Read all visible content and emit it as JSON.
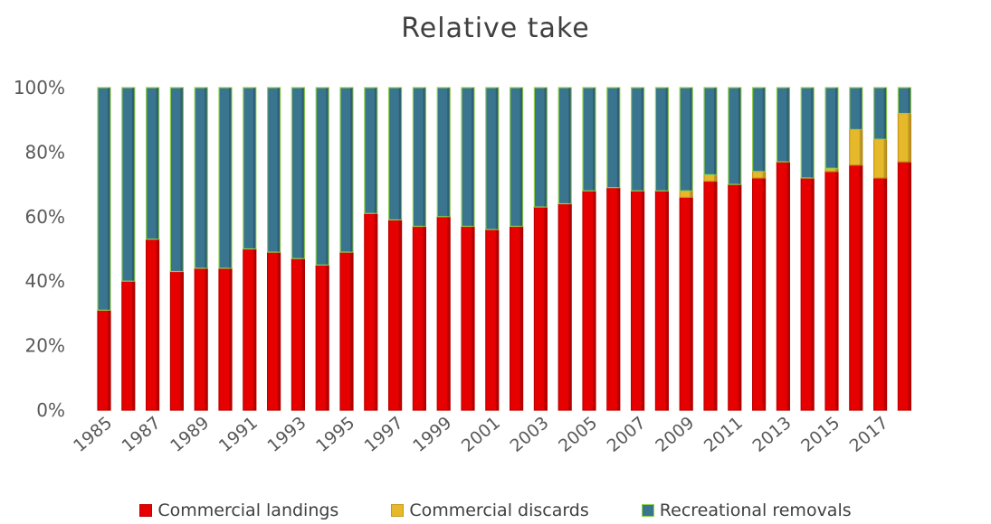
{
  "chart_data": {
    "type": "bar",
    "stacked": true,
    "normalized": true,
    "title": "Relative take",
    "xlabel": "",
    "ylabel": "",
    "ylim": [
      0,
      100
    ],
    "y_ticks": [
      "0%",
      "20%",
      "40%",
      "60%",
      "80%",
      "100%"
    ],
    "x_tick_labels": [
      "1985",
      "1987",
      "1989",
      "1991",
      "1993",
      "1995",
      "1997",
      "1999",
      "2001",
      "2003",
      "2005",
      "2007",
      "2009",
      "2011",
      "2013",
      "2015",
      "2017"
    ],
    "categories": [
      "1985",
      "1986",
      "1987",
      "1988",
      "1989",
      "1990",
      "1991",
      "1992",
      "1993",
      "1994",
      "1995",
      "1996",
      "1997",
      "1998",
      "1999",
      "2000",
      "2001",
      "2002",
      "2003",
      "2004",
      "2005",
      "2006",
      "2007",
      "2008",
      "2009",
      "2010",
      "2011",
      "2012",
      "2013",
      "2014",
      "2015",
      "2016",
      "2017",
      "2018"
    ],
    "series": [
      {
        "name": "Commercial landings",
        "color": "#e60000",
        "edge": "#c00000",
        "values": [
          31,
          40,
          53,
          43,
          44,
          44,
          50,
          49,
          47,
          45,
          49,
          61,
          59,
          57,
          60,
          57,
          56,
          57,
          63,
          64,
          68,
          69,
          68,
          68,
          66,
          71,
          70,
          72,
          77,
          72,
          74,
          76,
          72,
          77
        ]
      },
      {
        "name": "Commercial discards",
        "color": "#e6b92b",
        "edge": "#c9961a",
        "values": [
          0,
          0,
          0,
          0,
          0,
          0,
          0,
          0,
          0,
          0,
          0,
          0,
          0,
          0,
          0,
          0,
          0,
          0,
          0,
          0,
          0,
          0,
          0,
          0,
          2,
          2,
          0,
          2,
          0,
          0,
          1,
          11,
          12,
          15
        ]
      },
      {
        "name": "Recreational removals",
        "color": "#3a7590",
        "edge": "#8fd14f",
        "values": [
          69,
          60,
          47,
          57,
          56,
          56,
          50,
          51,
          53,
          55,
          51,
          39,
          41,
          43,
          40,
          43,
          44,
          43,
          37,
          36,
          32,
          31,
          32,
          32,
          32,
          27,
          30,
          26,
          23,
          28,
          25,
          13,
          16,
          8
        ]
      }
    ],
    "legend_position": "bottom",
    "grid": false
  }
}
